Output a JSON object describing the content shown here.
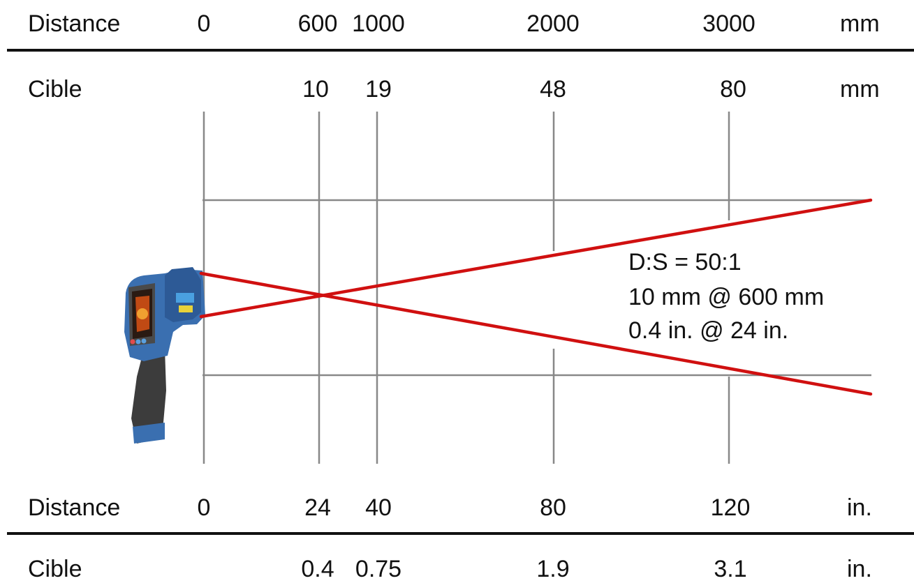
{
  "top_mm": {
    "distance_label": "Distance",
    "distance_values": [
      "0",
      "600",
      "1000",
      "2000",
      "3000"
    ],
    "distance_unit": "mm",
    "target_label": "Cible",
    "target_values": [
      "10",
      "19",
      "48",
      "80"
    ],
    "target_unit": "mm"
  },
  "bottom_in": {
    "distance_label": "Distance",
    "distance_values": [
      "0",
      "24",
      "40",
      "80",
      "120"
    ],
    "distance_unit": "in.",
    "target_label": "Cible",
    "target_values": [
      "0.4",
      "0.75",
      "1.9",
      "3.1"
    ],
    "target_unit": "in."
  },
  "annotation": {
    "ratio": "D:S = 50:1",
    "metric": "10 mm @ 600 mm",
    "imperial": "0.4 in. @ 24 in."
  },
  "colors": {
    "beam": "#d01010",
    "grid": "#888888",
    "rule": "#111111",
    "device_body": "#3a6fb0",
    "device_grip": "#3c3c3c"
  },
  "device_icon": "infrared-thermometer-icon"
}
